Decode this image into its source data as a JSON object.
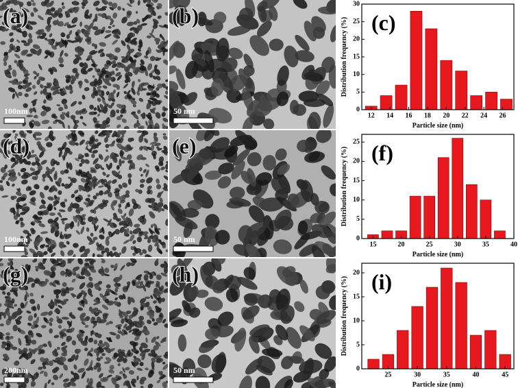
{
  "panels": [
    {
      "label": "(a)",
      "scale": "100nm"
    },
    {
      "label": "(b)",
      "scale": "50 nm"
    },
    {
      "label": "(d)",
      "scale": "100nm"
    },
    {
      "label": "(e)",
      "scale": "50 nm"
    },
    {
      "label": "(g)",
      "scale": "200nm"
    },
    {
      "label": "(h)",
      "scale": "50 nm"
    }
  ],
  "chart_data": [
    {
      "type": "bar",
      "label": "(c)",
      "xlabel": "Particle size (nm)",
      "ylabel": "Distribution frequency (%)",
      "color": "#e8191e",
      "x": [
        12,
        13.6,
        15.2,
        16.8,
        18.4,
        20,
        21.6,
        23.2,
        24.8,
        26.4
      ],
      "values": [
        1,
        4,
        7,
        28,
        23,
        14,
        11,
        4,
        5,
        3
      ],
      "xlim": [
        11,
        27.2
      ],
      "xticks": [
        12,
        14,
        16,
        18,
        20,
        22,
        24,
        26
      ],
      "ylim": [
        0,
        30
      ],
      "yticks": [
        0,
        5,
        10,
        15,
        20,
        25,
        30
      ]
    },
    {
      "type": "bar",
      "label": "(f)",
      "xlabel": "Particle size (nm)",
      "ylabel": "Distribution frequency (%)",
      "color": "#e8191e",
      "x": [
        15,
        17.5,
        20,
        22.5,
        25,
        27.5,
        30,
        32.5,
        35,
        37.5
      ],
      "values": [
        1,
        2,
        2,
        11,
        11,
        21,
        26,
        14,
        10,
        2
      ],
      "xlim": [
        13,
        40
      ],
      "xticks": [
        15,
        20,
        25,
        30,
        35,
        40
      ],
      "ylim": [
        0,
        27
      ],
      "yticks": [
        0,
        5,
        10,
        15,
        20,
        25
      ]
    },
    {
      "type": "bar",
      "label": "(i)",
      "xlabel": "Particle size (nm)",
      "ylabel": "Distribution frequency (%)",
      "color": "#e8191e",
      "x": [
        22.5,
        25,
        27.5,
        30,
        32.5,
        35,
        37.5,
        40,
        42.5,
        45
      ],
      "values": [
        2,
        3,
        8,
        13,
        17,
        21,
        18,
        7,
        8,
        3
      ],
      "xlim": [
        20.5,
        46.5
      ],
      "xticks": [
        25,
        30,
        35,
        40,
        45
      ],
      "ylim": [
        0,
        22
      ],
      "yticks": [
        0,
        5,
        10,
        15,
        20
      ]
    }
  ]
}
